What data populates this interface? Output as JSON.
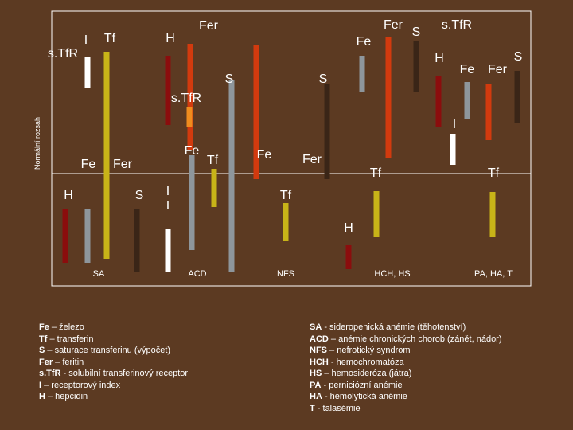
{
  "axis_label": "Normální rozsah",
  "colors": {
    "Fe": "#8b0d0d",
    "Tf": "#c8b418",
    "S": "#8e969c",
    "Fer": "#d23a0e",
    "sTfR": "#f08c1e",
    "I": "#ffffff",
    "H": "#3a2517",
    "frame": "#ffffff",
    "background": "#5c3a22"
  },
  "labels": {
    "sTfR": "s.TfR",
    "I": "I",
    "Tf": "Tf",
    "H": "H",
    "Fer": "Fer",
    "Fe": "Fe",
    "S": "S"
  },
  "conditions": [
    {
      "code": "SA"
    },
    {
      "code": "ACD"
    },
    {
      "code": "NFS"
    },
    {
      "code": "HCH, HS"
    },
    {
      "code": "PA, HA, T"
    }
  ],
  "legend_markers": [
    {
      "term": "Fe",
      "desc": " – železo"
    },
    {
      "term": "Tf",
      "desc": " – transferin"
    },
    {
      "term": "S",
      "desc": " – saturace transferinu (výpočet)"
    },
    {
      "term": "Fer",
      "desc": " – feritin"
    },
    {
      "term": "s.TfR",
      "desc": " - solubilní transferinový receptor"
    },
    {
      "term": "I",
      "desc": " – receptorový index"
    },
    {
      "term": "H",
      "desc": " – hepcidin"
    }
  ],
  "legend_conditions": [
    {
      "term": "SA",
      "desc": " - sideropenická anémie (těhotenství)"
    },
    {
      "term": "ACD",
      "desc": " – anémie chronických chorob (zánět, nádor)"
    },
    {
      "term": "NFS",
      "desc": " – nefrotický syndrom"
    },
    {
      "term": "HCH",
      "desc": " - hemochromatóza"
    },
    {
      "term": "HS",
      "desc": " – hemosideróza (játra)"
    },
    {
      "term": "PA",
      "desc": " - perniciózní anémie"
    },
    {
      "term": "HA",
      "desc": " - hemolytická anémie"
    },
    {
      "term": "T",
      "desc": " - talasémie"
    }
  ]
}
